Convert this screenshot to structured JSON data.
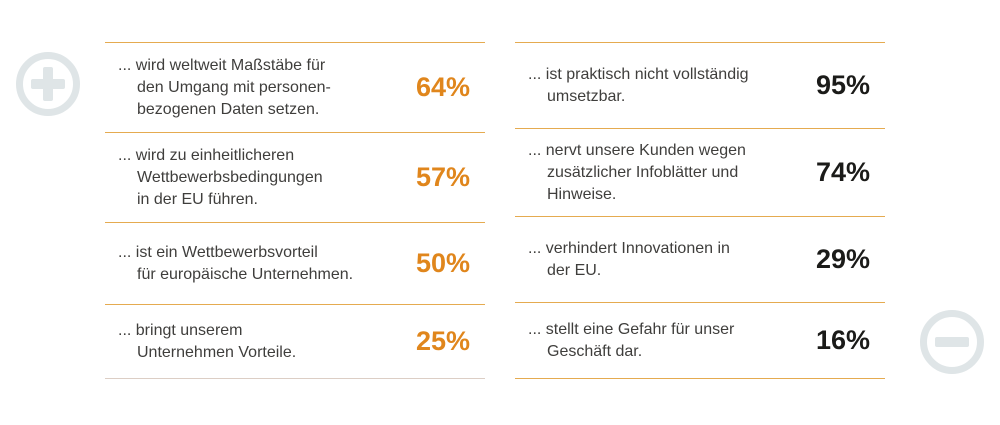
{
  "colors": {
    "accent_orange": "#e0861c",
    "percent_dark": "#1b1b19",
    "body_text": "#3f3e3c",
    "rule_gold": "#e5ab50",
    "rule_pale": "#dccec5",
    "badge_gray": "#dfe5e7"
  },
  "icons": {
    "plus": "plus-circle-icon",
    "minus": "minus-circle-icon"
  },
  "columns": {
    "positive": {
      "items": [
        {
          "text": "... wird weltweit Maßstäbe für\nden Umgang mit personen-\nbezogenen Daten setzen.",
          "value": "64%"
        },
        {
          "text": "... wird zu einheitlicheren\nWettbewerbsbedingungen\nin der EU führen.",
          "value": "57%"
        },
        {
          "text": "... ist ein Wettbewerbsvorteil\nfür europäische Unternehmen.",
          "value": "50%"
        },
        {
          "text": "... bringt unserem\nUnternehmen Vorteile.",
          "value": "25%"
        }
      ]
    },
    "negative": {
      "items": [
        {
          "text": "... ist praktisch nicht vollständig\numsetzbar.",
          "value": "95%"
        },
        {
          "text": "... nervt unsere Kunden wegen\nzusätzlicher Infoblätter und\nHinweise.",
          "value": "74%"
        },
        {
          "text": "... verhindert Innovationen in\nder EU.",
          "value": "29%"
        },
        {
          "text": "... stellt eine Gefahr für unser\nGeschäft dar.",
          "value": "16%"
        }
      ]
    }
  },
  "chart_data": [
    {
      "type": "table",
      "title": "",
      "group": "positive statements (plus)",
      "categories": [
        "... wird weltweit Maßstäbe für den Umgang mit personenbezogenen Daten setzen.",
        "... wird zu einheitlicheren Wettbewerbsbedingungen in der EU führen.",
        "... ist ein Wettbewerbsvorteil für europäische Unternehmen.",
        "... bringt unserem Unternehmen Vorteile."
      ],
      "values": [
        64,
        57,
        50,
        25
      ],
      "unit": "%"
    },
    {
      "type": "table",
      "title": "",
      "group": "negative statements (minus)",
      "categories": [
        "... ist praktisch nicht vollständig umsetzbar.",
        "... nervt unsere Kunden wegen zusätzlicher Infoblätter und Hinweise.",
        "... verhindert Innovationen in der EU.",
        "... stellt eine Gefahr für unser Geschäft dar."
      ],
      "values": [
        95,
        74,
        29,
        16
      ],
      "unit": "%"
    }
  ]
}
